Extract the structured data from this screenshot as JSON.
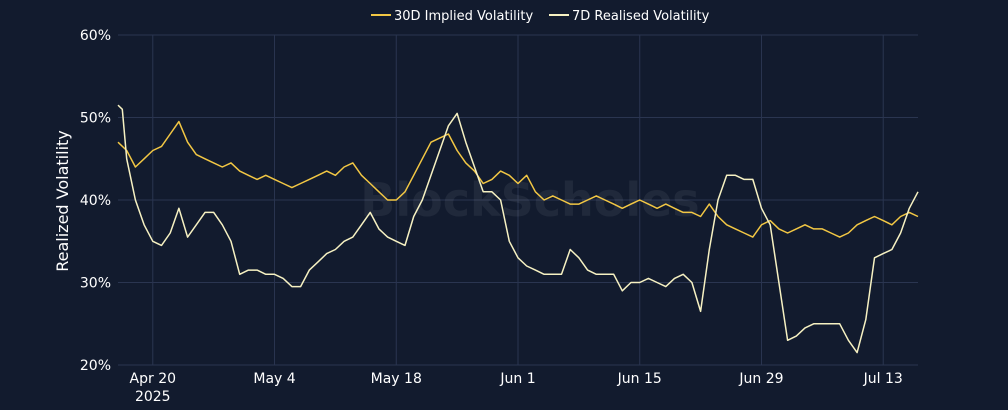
{
  "chart_data": {
    "type": "line",
    "ylabel": "Realized Volatility",
    "y_tick_labels": [
      "20%",
      "30%",
      "40%",
      "50%",
      "60%"
    ],
    "ylim": [
      20,
      60
    ],
    "x_tick_labels": [
      {
        "date": "2025-04-20",
        "label": "Apr 20",
        "sublabel": "2025"
      },
      {
        "date": "2025-05-04",
        "label": "May 4"
      },
      {
        "date": "2025-05-18",
        "label": "May 18"
      },
      {
        "date": "2025-06-01",
        "label": "Jun 1"
      },
      {
        "date": "2025-06-15",
        "label": "Jun 15"
      },
      {
        "date": "2025-06-29",
        "label": "Jun 29"
      },
      {
        "date": "2025-07-13",
        "label": "Jul 13"
      }
    ],
    "xlim": [
      "2025-04-16",
      "2025-07-17"
    ],
    "grid": true,
    "legend_position": "top-center",
    "watermark": "BlockScholes",
    "series": [
      {
        "name": "30D Implied Volatility",
        "color": "#f2c744",
        "points": [
          [
            "2025-04-16",
            47.0
          ],
          [
            "2025-04-17",
            46.0
          ],
          [
            "2025-04-18",
            44.0
          ],
          [
            "2025-04-19",
            45.0
          ],
          [
            "2025-04-20",
            46.0
          ],
          [
            "2025-04-21",
            46.5
          ],
          [
            "2025-04-22",
            48.0
          ],
          [
            "2025-04-23",
            49.5
          ],
          [
            "2025-04-24",
            47.0
          ],
          [
            "2025-04-25",
            45.5
          ],
          [
            "2025-04-26",
            45.0
          ],
          [
            "2025-04-27",
            44.5
          ],
          [
            "2025-04-28",
            44.0
          ],
          [
            "2025-04-29",
            44.5
          ],
          [
            "2025-04-30",
            43.5
          ],
          [
            "2025-05-01",
            43.0
          ],
          [
            "2025-05-02",
            42.5
          ],
          [
            "2025-05-03",
            43.0
          ],
          [
            "2025-05-04",
            42.5
          ],
          [
            "2025-05-05",
            42.0
          ],
          [
            "2025-05-06",
            41.5
          ],
          [
            "2025-05-07",
            42.0
          ],
          [
            "2025-05-08",
            42.5
          ],
          [
            "2025-05-09",
            43.0
          ],
          [
            "2025-05-10",
            43.5
          ],
          [
            "2025-05-11",
            43.0
          ],
          [
            "2025-05-12",
            44.0
          ],
          [
            "2025-05-13",
            44.5
          ],
          [
            "2025-05-14",
            43.0
          ],
          [
            "2025-05-15",
            42.0
          ],
          [
            "2025-05-16",
            41.0
          ],
          [
            "2025-05-17",
            40.0
          ],
          [
            "2025-05-18",
            40.0
          ],
          [
            "2025-05-19",
            41.0
          ],
          [
            "2025-05-20",
            43.0
          ],
          [
            "2025-05-21",
            45.0
          ],
          [
            "2025-05-22",
            47.0
          ],
          [
            "2025-05-23",
            47.5
          ],
          [
            "2025-05-24",
            48.0
          ],
          [
            "2025-05-25",
            46.0
          ],
          [
            "2025-05-26",
            44.5
          ],
          [
            "2025-05-27",
            43.5
          ],
          [
            "2025-05-28",
            42.0
          ],
          [
            "2025-05-29",
            42.5
          ],
          [
            "2025-05-30",
            43.5
          ],
          [
            "2025-05-31",
            43.0
          ],
          [
            "2025-06-01",
            42.0
          ],
          [
            "2025-06-02",
            43.0
          ],
          [
            "2025-06-03",
            41.0
          ],
          [
            "2025-06-04",
            40.0
          ],
          [
            "2025-06-05",
            40.5
          ],
          [
            "2025-06-06",
            40.0
          ],
          [
            "2025-06-07",
            39.5
          ],
          [
            "2025-06-08",
            39.5
          ],
          [
            "2025-06-09",
            40.0
          ],
          [
            "2025-06-10",
            40.5
          ],
          [
            "2025-06-11",
            40.0
          ],
          [
            "2025-06-12",
            39.5
          ],
          [
            "2025-06-13",
            39.0
          ],
          [
            "2025-06-14",
            39.5
          ],
          [
            "2025-06-15",
            40.0
          ],
          [
            "2025-06-16",
            39.5
          ],
          [
            "2025-06-17",
            39.0
          ],
          [
            "2025-06-18",
            39.5
          ],
          [
            "2025-06-19",
            39.0
          ],
          [
            "2025-06-20",
            38.5
          ],
          [
            "2025-06-21",
            38.5
          ],
          [
            "2025-06-22",
            38.0
          ],
          [
            "2025-06-23",
            39.5
          ],
          [
            "2025-06-24",
            38.0
          ],
          [
            "2025-06-25",
            37.0
          ],
          [
            "2025-06-26",
            36.5
          ],
          [
            "2025-06-27",
            36.0
          ],
          [
            "2025-06-28",
            35.5
          ],
          [
            "2025-06-29",
            37.0
          ],
          [
            "2025-06-30",
            37.5
          ],
          [
            "2025-07-01",
            36.5
          ],
          [
            "2025-07-02",
            36.0
          ],
          [
            "2025-07-03",
            36.5
          ],
          [
            "2025-07-04",
            37.0
          ],
          [
            "2025-07-05",
            36.5
          ],
          [
            "2025-07-06",
            36.5
          ],
          [
            "2025-07-07",
            36.0
          ],
          [
            "2025-07-08",
            35.5
          ],
          [
            "2025-07-09",
            36.0
          ],
          [
            "2025-07-10",
            37.0
          ],
          [
            "2025-07-11",
            37.5
          ],
          [
            "2025-07-12",
            38.0
          ],
          [
            "2025-07-13",
            37.5
          ],
          [
            "2025-07-14",
            37.0
          ],
          [
            "2025-07-15",
            38.0
          ],
          [
            "2025-07-16",
            38.5
          ],
          [
            "2025-07-17",
            38.0
          ]
        ]
      },
      {
        "name": "7D Realised Volatility",
        "color": "#f6f1c2",
        "points": [
          [
            "2025-04-16",
            51.5
          ],
          [
            "2025-04-16.5",
            51.0
          ],
          [
            "2025-04-17",
            45.0
          ],
          [
            "2025-04-18",
            40.0
          ],
          [
            "2025-04-19",
            37.0
          ],
          [
            "2025-04-20",
            35.0
          ],
          [
            "2025-04-21",
            34.5
          ],
          [
            "2025-04-22",
            36.0
          ],
          [
            "2025-04-23",
            39.0
          ],
          [
            "2025-04-24",
            35.5
          ],
          [
            "2025-04-25",
            37.0
          ],
          [
            "2025-04-26",
            38.5
          ],
          [
            "2025-04-27",
            38.5
          ],
          [
            "2025-04-28",
            37.0
          ],
          [
            "2025-04-29",
            35.0
          ],
          [
            "2025-04-30",
            31.0
          ],
          [
            "2025-05-01",
            31.5
          ],
          [
            "2025-05-02",
            31.5
          ],
          [
            "2025-05-03",
            31.0
          ],
          [
            "2025-05-04",
            31.0
          ],
          [
            "2025-05-05",
            30.5
          ],
          [
            "2025-05-06",
            29.5
          ],
          [
            "2025-05-07",
            29.5
          ],
          [
            "2025-05-08",
            31.5
          ],
          [
            "2025-05-09",
            32.5
          ],
          [
            "2025-05-10",
            33.5
          ],
          [
            "2025-05-11",
            34.0
          ],
          [
            "2025-05-12",
            35.0
          ],
          [
            "2025-05-13",
            35.5
          ],
          [
            "2025-05-14",
            37.0
          ],
          [
            "2025-05-15",
            38.5
          ],
          [
            "2025-05-16",
            36.5
          ],
          [
            "2025-05-17",
            35.5
          ],
          [
            "2025-05-18",
            35.0
          ],
          [
            "2025-05-19",
            34.5
          ],
          [
            "2025-05-20",
            38.0
          ],
          [
            "2025-05-21",
            40.0
          ],
          [
            "2025-05-22",
            43.0
          ],
          [
            "2025-05-23",
            46.0
          ],
          [
            "2025-05-24",
            49.0
          ],
          [
            "2025-05-25",
            50.5
          ],
          [
            "2025-05-26",
            47.0
          ],
          [
            "2025-05-27",
            44.0
          ],
          [
            "2025-05-28",
            41.0
          ],
          [
            "2025-05-29",
            41.0
          ],
          [
            "2025-05-30",
            40.0
          ],
          [
            "2025-05-31",
            35.0
          ],
          [
            "2025-06-01",
            33.0
          ],
          [
            "2025-06-02",
            32.0
          ],
          [
            "2025-06-03",
            31.5
          ],
          [
            "2025-06-04",
            31.0
          ],
          [
            "2025-06-05",
            31.0
          ],
          [
            "2025-06-06",
            31.0
          ],
          [
            "2025-06-07",
            34.0
          ],
          [
            "2025-06-08",
            33.0
          ],
          [
            "2025-06-09",
            31.5
          ],
          [
            "2025-06-10",
            31.0
          ],
          [
            "2025-06-11",
            31.0
          ],
          [
            "2025-06-12",
            31.0
          ],
          [
            "2025-06-13",
            29.0
          ],
          [
            "2025-06-14",
            30.0
          ],
          [
            "2025-06-15",
            30.0
          ],
          [
            "2025-06-16",
            30.5
          ],
          [
            "2025-06-17",
            30.0
          ],
          [
            "2025-06-18",
            29.5
          ],
          [
            "2025-06-19",
            30.5
          ],
          [
            "2025-06-20",
            31.0
          ],
          [
            "2025-06-21",
            30.0
          ],
          [
            "2025-06-22",
            26.5
          ],
          [
            "2025-06-23",
            34.0
          ],
          [
            "2025-06-24",
            40.0
          ],
          [
            "2025-06-25",
            43.0
          ],
          [
            "2025-06-26",
            43.0
          ],
          [
            "2025-06-27",
            42.5
          ],
          [
            "2025-06-28",
            42.5
          ],
          [
            "2025-06-29",
            39.0
          ],
          [
            "2025-06-30",
            37.0
          ],
          [
            "2025-07-01",
            30.0
          ],
          [
            "2025-07-02",
            23.0
          ],
          [
            "2025-07-03",
            23.5
          ],
          [
            "2025-07-04",
            24.5
          ],
          [
            "2025-07-05",
            25.0
          ],
          [
            "2025-07-06",
            25.0
          ],
          [
            "2025-07-07",
            25.0
          ],
          [
            "2025-07-08",
            25.0
          ],
          [
            "2025-07-09",
            23.0
          ],
          [
            "2025-07-10",
            21.5
          ],
          [
            "2025-07-11",
            25.5
          ],
          [
            "2025-07-12",
            33.0
          ],
          [
            "2025-07-13",
            33.5
          ],
          [
            "2025-07-14",
            34.0
          ],
          [
            "2025-07-15",
            36.0
          ],
          [
            "2025-07-16",
            39.0
          ],
          [
            "2025-07-17",
            41.0
          ]
        ]
      }
    ]
  }
}
